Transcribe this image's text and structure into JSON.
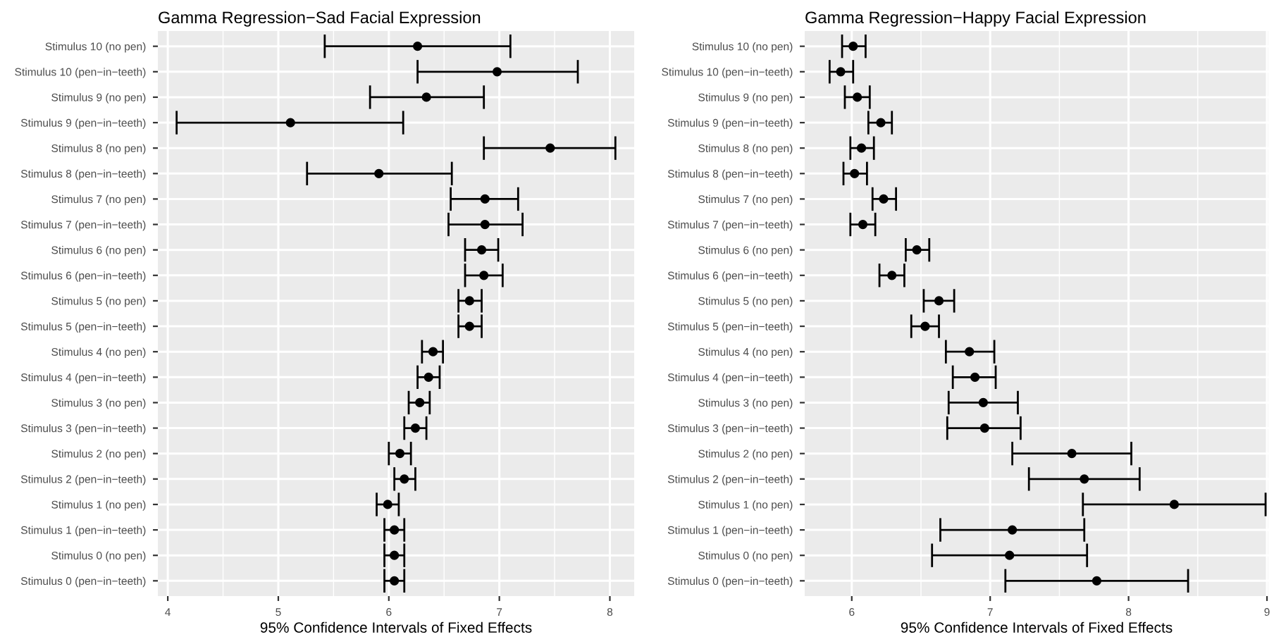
{
  "chart_data": [
    {
      "type": "scatter",
      "orientation": "horizontal",
      "title": "Gamma Regression−Sad Facial Expression",
      "xlabel": "95% Confidence Intervals of Fixed Effects",
      "categories": [
        "Stimulus 10 (no pen)",
        "Stimulus 10 (pen−in−teeth)",
        "Stimulus 9 (no pen)",
        "Stimulus 9 (pen−in−teeth)",
        "Stimulus 8 (no pen)",
        "Stimulus 8 (pen−in−teeth)",
        "Stimulus 7 (no pen)",
        "Stimulus 7 (pen−in−teeth)",
        "Stimulus 6 (no pen)",
        "Stimulus 6 (pen−in−teeth)",
        "Stimulus 5 (no pen)",
        "Stimulus 5 (pen−in−teeth)",
        "Stimulus 4 (no pen)",
        "Stimulus 4 (pen−in−teeth)",
        "Stimulus 3 (no pen)",
        "Stimulus 3 (pen−in−teeth)",
        "Stimulus 2 (no pen)",
        "Stimulus 2 (pen−in−teeth)",
        "Stimulus 1 (no pen)",
        "Stimulus 1 (pen−in−teeth)",
        "Stimulus 0 (no pen)",
        "Stimulus 0 (pen−in−teeth)"
      ],
      "values": [
        6.26,
        6.98,
        6.34,
        5.11,
        7.46,
        5.91,
        6.87,
        6.87,
        6.84,
        6.86,
        6.73,
        6.73,
        6.4,
        6.36,
        6.28,
        6.24,
        6.1,
        6.14,
        5.99,
        6.05,
        6.05,
        6.05
      ],
      "errors": [
        [
          5.42,
          7.1
        ],
        [
          6.26,
          7.71
        ],
        [
          5.83,
          6.86
        ],
        [
          4.08,
          6.13
        ],
        [
          6.86,
          8.05
        ],
        [
          5.26,
          6.57
        ],
        [
          6.56,
          7.17
        ],
        [
          6.54,
          7.21
        ],
        [
          6.69,
          6.99
        ],
        [
          6.69,
          7.03
        ],
        [
          6.63,
          6.84
        ],
        [
          6.63,
          6.84
        ],
        [
          6.3,
          6.49
        ],
        [
          6.26,
          6.46
        ],
        [
          6.18,
          6.37
        ],
        [
          6.14,
          6.34
        ],
        [
          6.0,
          6.2
        ],
        [
          6.05,
          6.24
        ],
        [
          5.89,
          6.09
        ],
        [
          5.96,
          6.14
        ],
        [
          5.96,
          6.14
        ],
        [
          5.96,
          6.14
        ]
      ],
      "color": "#000000",
      "marker": "circle",
      "xlim": [
        3.91,
        8.22
      ],
      "xticks": [
        4,
        5,
        6,
        7,
        8
      ],
      "grid": true
    },
    {
      "type": "scatter",
      "orientation": "horizontal",
      "title": "Gamma Regression−Happy Facial Expression",
      "xlabel": "95% Confidence Intervals of Fixed Effects",
      "categories": [
        "Stimulus 10 (no pen)",
        "Stimulus 10 (pen−in−teeth)",
        "Stimulus 9 (no pen)",
        "Stimulus 9 (pen−in−teeth)",
        "Stimulus 8 (no pen)",
        "Stimulus 8 (pen−in−teeth)",
        "Stimulus 7 (no pen)",
        "Stimulus 7 (pen−in−teeth)",
        "Stimulus 6 (no pen)",
        "Stimulus 6 (pen−in−teeth)",
        "Stimulus 5 (no pen)",
        "Stimulus 5 (pen−in−teeth)",
        "Stimulus 4 (no pen)",
        "Stimulus 4 (pen−in−teeth)",
        "Stimulus 3 (no pen)",
        "Stimulus 3 (pen−in−teeth)",
        "Stimulus 2 (no pen)",
        "Stimulus 2 (pen−in−teeth)",
        "Stimulus 1 (no pen)",
        "Stimulus 1 (pen−in−teeth)",
        "Stimulus 0 (no pen)",
        "Stimulus 0 (pen−in−teeth)"
      ],
      "values": [
        6.01,
        5.92,
        6.04,
        6.21,
        6.07,
        6.02,
        6.23,
        6.08,
        6.47,
        6.29,
        6.63,
        6.53,
        6.85,
        6.89,
        6.95,
        6.96,
        7.59,
        7.68,
        8.33,
        7.16,
        7.14,
        7.77
      ],
      "errors": [
        [
          5.93,
          6.1
        ],
        [
          5.84,
          6.01
        ],
        [
          5.95,
          6.13
        ],
        [
          6.12,
          6.29
        ],
        [
          5.99,
          6.16
        ],
        [
          5.94,
          6.11
        ],
        [
          6.15,
          6.32
        ],
        [
          5.99,
          6.17
        ],
        [
          6.39,
          6.56
        ],
        [
          6.2,
          6.38
        ],
        [
          6.52,
          6.74
        ],
        [
          6.43,
          6.63
        ],
        [
          6.68,
          7.03
        ],
        [
          6.73,
          7.04
        ],
        [
          6.7,
          7.2
        ],
        [
          6.69,
          7.22
        ],
        [
          7.16,
          8.02
        ],
        [
          7.28,
          8.08
        ],
        [
          7.67,
          8.99
        ],
        [
          6.64,
          7.68
        ],
        [
          6.58,
          7.7
        ],
        [
          7.11,
          8.43
        ]
      ],
      "color": "#000000",
      "marker": "circle",
      "xlim": [
        5.66,
        9.01
      ],
      "xticks": [
        6,
        7,
        8,
        9
      ],
      "grid": true
    }
  ]
}
